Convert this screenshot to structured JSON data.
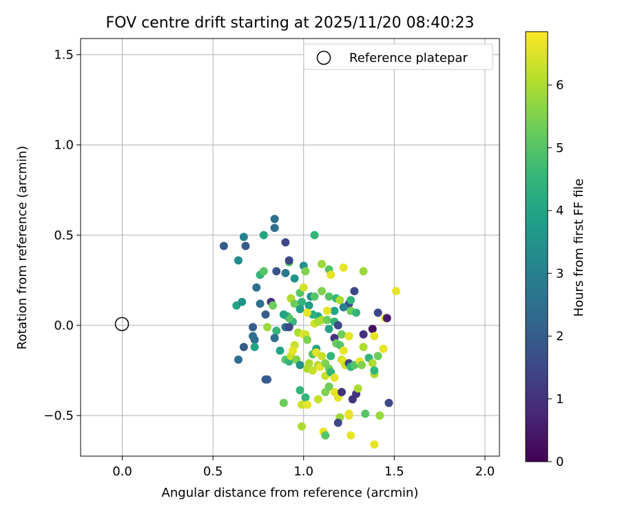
{
  "chart_data": {
    "type": "scatter",
    "title": "FOV centre drift starting at 2025/11/20 08:40:23",
    "xlabel": "Angular distance from reference (arcmin)",
    "ylabel": "Rotation from reference (arcmin)",
    "xlim": [
      -0.23,
      2.08
    ],
    "ylim": [
      -0.725,
      1.59
    ],
    "xticks": [
      0.0,
      0.5,
      1.0,
      1.5,
      2.0
    ],
    "xtick_labels": [
      "0.0",
      "0.5",
      "1.0",
      "1.5",
      "2.0"
    ],
    "yticks": [
      -0.5,
      0.0,
      0.5,
      1.0,
      1.5
    ],
    "ytick_labels": [
      "−0.5",
      "0.0",
      "0.5",
      "1.0",
      "1.5"
    ],
    "grid": true,
    "legend": {
      "location": "upper right",
      "entries": [
        {
          "label": "Reference platepar",
          "marker": "open-circle",
          "color": "#000000"
        }
      ]
    },
    "reference_point": {
      "x": 0.0,
      "y": 0.0
    },
    "colorbar": {
      "label": "Hours from first FF file",
      "colormap": "viridis",
      "range": [
        0,
        6.85
      ],
      "ticks": [
        0,
        1,
        2,
        3,
        4,
        5,
        6
      ],
      "tick_labels": [
        "0",
        "1",
        "2",
        "3",
        "4",
        "5",
        "6"
      ],
      "stops": [
        "#440154",
        "#482878",
        "#3e4989",
        "#31688e",
        "#26828e",
        "#1f9e89",
        "#35b779",
        "#6ece58",
        "#b5de2b",
        "#fde725"
      ]
    },
    "series": [
      {
        "name": "FOV centre drift",
        "points": [
          [
            0.56,
            0.44,
            2.0
          ],
          [
            0.68,
            0.44,
            2.0
          ],
          [
            0.67,
            0.49,
            3.0
          ],
          [
            0.78,
            0.5,
            4.0
          ],
          [
            0.84,
            0.59,
            2.5
          ],
          [
            0.84,
            0.54,
            2.5
          ],
          [
            0.9,
            0.46,
            1.5
          ],
          [
            1.06,
            0.5,
            4.5
          ],
          [
            0.64,
            0.36,
            3.3
          ],
          [
            0.76,
            0.28,
            4.5
          ],
          [
            0.78,
            0.3,
            5.0
          ],
          [
            0.85,
            0.3,
            1.8
          ],
          [
            0.9,
            0.29,
            2.7
          ],
          [
            0.92,
            0.35,
            5.0
          ],
          [
            0.92,
            0.36,
            1.5
          ],
          [
            0.95,
            0.26,
            3.5
          ],
          [
            0.74,
            0.21,
            2.5
          ],
          [
            1.0,
            0.33,
            3.5
          ],
          [
            1.01,
            0.3,
            5.5
          ],
          [
            1.1,
            0.34,
            5.8
          ],
          [
            1.14,
            0.31,
            5.0
          ],
          [
            1.22,
            0.32,
            6.6
          ],
          [
            1.33,
            0.3,
            5.8
          ],
          [
            0.63,
            0.11,
            4.0
          ],
          [
            0.66,
            0.13,
            3.5
          ],
          [
            0.76,
            0.12,
            2.5
          ],
          [
            0.82,
            0.13,
            1.0
          ],
          [
            0.83,
            0.11,
            5.3
          ],
          [
            0.79,
            0.06,
            2.0
          ],
          [
            0.93,
            0.15,
            6.0
          ],
          [
            0.95,
            0.12,
            5.3
          ],
          [
            0.98,
            0.18,
            5.0
          ],
          [
            1.0,
            0.21,
            6.4
          ],
          [
            0.99,
            0.13,
            4.5
          ],
          [
            1.03,
            0.11,
            3.8
          ],
          [
            1.04,
            0.16,
            3.5
          ],
          [
            1.06,
            0.16,
            5.0
          ],
          [
            1.1,
            0.19,
            5.5
          ],
          [
            1.14,
            0.16,
            5.0
          ],
          [
            1.15,
            0.28,
            6.6
          ],
          [
            1.18,
            0.15,
            4.5
          ],
          [
            1.2,
            0.14,
            6.0
          ],
          [
            1.25,
            0.12,
            1.5
          ],
          [
            1.26,
            0.14,
            4.5
          ],
          [
            1.28,
            0.19,
            1.5
          ],
          [
            1.26,
            0.08,
            5.3
          ],
          [
            1.29,
            0.07,
            4.5
          ],
          [
            1.22,
            0.1,
            3.0
          ],
          [
            1.17,
            0.08,
            4.0
          ],
          [
            1.13,
            0.08,
            6.6
          ],
          [
            1.08,
            0.05,
            4.0
          ],
          [
            1.05,
            0.06,
            4.3
          ],
          [
            1.02,
            0.07,
            6.6
          ],
          [
            0.98,
            0.09,
            3.8
          ],
          [
            0.94,
            0.02,
            4.5
          ],
          [
            0.91,
            0.05,
            4.0
          ],
          [
            0.92,
            0.04,
            5.0
          ],
          [
            0.89,
            0.06,
            4.0
          ],
          [
            0.72,
            -0.01,
            2.0
          ],
          [
            0.72,
            -0.06,
            2.5
          ],
          [
            0.73,
            -0.08,
            2.5
          ],
          [
            0.73,
            -0.12,
            4.0
          ],
          [
            0.67,
            -0.12,
            2.0
          ],
          [
            0.64,
            -0.19,
            2.5
          ],
          [
            0.8,
            -0.01,
            5.8
          ],
          [
            0.85,
            -0.03,
            4.5
          ],
          [
            0.84,
            -0.07,
            4.5
          ],
          [
            0.84,
            -0.07,
            2.5
          ],
          [
            0.9,
            -0.01,
            2.5
          ],
          [
            0.87,
            -0.14,
            4.0
          ],
          [
            0.92,
            -0.01,
            1.5
          ],
          [
            0.97,
            -0.04,
            6.0
          ],
          [
            1.0,
            -0.05,
            6.6
          ],
          [
            1.01,
            -0.05,
            6.4
          ],
          [
            1.02,
            -0.08,
            5.5
          ],
          [
            1.06,
            0.01,
            6.4
          ],
          [
            1.08,
            0.02,
            6.0
          ],
          [
            1.1,
            0.03,
            6.0
          ],
          [
            1.13,
            0.03,
            5.3
          ],
          [
            1.14,
            -0.02,
            4.0
          ],
          [
            1.17,
            0.02,
            4.5
          ],
          [
            1.19,
            0.0,
            1.5
          ],
          [
            1.21,
            -0.05,
            5.3
          ],
          [
            1.17,
            -0.07,
            1.0
          ],
          [
            1.25,
            -0.06,
            6.6
          ],
          [
            1.25,
            -0.06,
            6.6
          ],
          [
            1.33,
            -0.05,
            1.0
          ],
          [
            1.38,
            -0.02,
            0.2
          ],
          [
            1.39,
            -0.06,
            6.6
          ],
          [
            1.41,
            0.07,
            1.5
          ],
          [
            1.45,
            0.04,
            6.6
          ],
          [
            1.46,
            0.04,
            0.5
          ],
          [
            1.51,
            0.19,
            6.6
          ],
          [
            0.79,
            -0.3,
            2.0
          ],
          [
            0.8,
            -0.3,
            2.0
          ],
          [
            0.9,
            -0.19,
            5.0
          ],
          [
            0.92,
            -0.2,
            4.5
          ],
          [
            0.93,
            -0.17,
            6.3
          ],
          [
            0.95,
            -0.11,
            6.3
          ],
          [
            0.94,
            -0.14,
            6.6
          ],
          [
            0.96,
            -0.19,
            5.5
          ],
          [
            0.98,
            -0.22,
            3.5
          ],
          [
            1.02,
            -0.24,
            6.0
          ],
          [
            1.03,
            -0.21,
            6.0
          ],
          [
            1.05,
            -0.25,
            6.3
          ],
          [
            1.05,
            -0.16,
            5.0
          ],
          [
            1.07,
            -0.13,
            4.0
          ],
          [
            1.07,
            -0.15,
            6.6
          ],
          [
            1.08,
            -0.22,
            6.0
          ],
          [
            1.09,
            -0.23,
            6.6
          ],
          [
            1.1,
            -0.17,
            6.3
          ],
          [
            1.12,
            -0.21,
            5.5
          ],
          [
            1.12,
            -0.28,
            6.3
          ],
          [
            1.14,
            -0.24,
            5.3
          ],
          [
            1.15,
            -0.17,
            4.5
          ],
          [
            1.15,
            -0.26,
            4.5
          ],
          [
            1.17,
            -0.29,
            6.6
          ],
          [
            1.18,
            -0.1,
            5.3
          ],
          [
            1.2,
            -0.11,
            5.0
          ],
          [
            1.21,
            -0.19,
            6.3
          ],
          [
            1.22,
            -0.2,
            6.6
          ],
          [
            1.22,
            -0.14,
            6.6
          ],
          [
            1.23,
            -0.22,
            6.3
          ],
          [
            1.25,
            -0.21,
            1.5
          ],
          [
            1.26,
            -0.23,
            4.5
          ],
          [
            1.28,
            -0.22,
            5.0
          ],
          [
            1.31,
            -0.2,
            6.6
          ],
          [
            1.32,
            -0.22,
            5.5
          ],
          [
            1.33,
            -0.12,
            6.0
          ],
          [
            1.36,
            -0.18,
            4.5
          ],
          [
            1.38,
            -0.21,
            6.0
          ],
          [
            1.39,
            -0.27,
            6.0
          ],
          [
            1.41,
            -0.17,
            5.3
          ],
          [
            1.44,
            -0.13,
            6.6
          ],
          [
            1.39,
            -0.25,
            4.5
          ],
          [
            0.89,
            -0.43,
            5.3
          ],
          [
            0.98,
            -0.36,
            4.5
          ],
          [
            0.99,
            -0.44,
            6.3
          ],
          [
            1.01,
            -0.4,
            4.5
          ],
          [
            1.02,
            -0.44,
            6.6
          ],
          [
            1.08,
            -0.41,
            6.3
          ],
          [
            1.12,
            -0.37,
            5.5
          ],
          [
            1.14,
            -0.34,
            5.3
          ],
          [
            1.17,
            -0.37,
            6.6
          ],
          [
            1.19,
            -0.4,
            6.6
          ],
          [
            1.2,
            -0.51,
            5.8
          ],
          [
            1.19,
            -0.54,
            1.5
          ],
          [
            1.21,
            -0.37,
            1.0
          ],
          [
            1.25,
            -0.49,
            6.6
          ],
          [
            1.25,
            -0.5,
            6.6
          ],
          [
            1.27,
            -0.41,
            1.0
          ],
          [
            1.29,
            -0.38,
            1.0
          ],
          [
            1.3,
            -0.35,
            6.0
          ],
          [
            1.34,
            -0.49,
            5.0
          ],
          [
            1.42,
            -0.5,
            5.8
          ],
          [
            1.47,
            -0.43,
            1.5
          ],
          [
            0.99,
            -0.56,
            6.0
          ],
          [
            1.11,
            -0.59,
            6.6
          ],
          [
            1.12,
            -0.61,
            5.0
          ],
          [
            1.26,
            -0.61,
            6.6
          ],
          [
            1.39,
            -0.66,
            6.6
          ]
        ]
      }
    ]
  }
}
